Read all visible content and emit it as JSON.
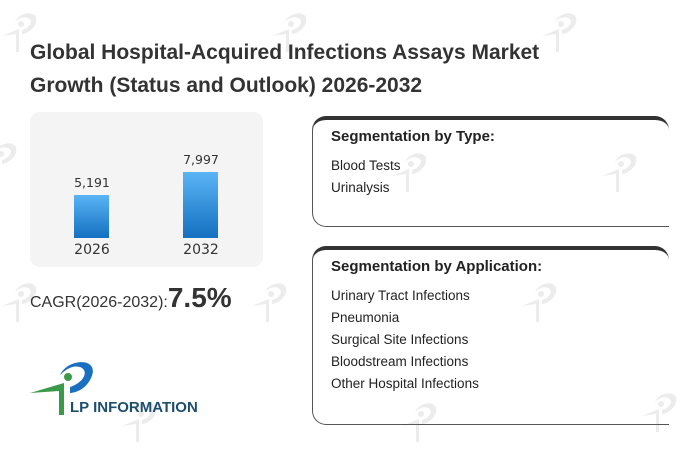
{
  "title": "Global Hospital-Acquired Infections Assays Market Growth (Status and Outlook) 2026-2032",
  "chart_data": {
    "type": "bar",
    "categories": [
      "2026",
      "2032"
    ],
    "values": [
      5191,
      7997
    ],
    "value_labels": [
      "5,191",
      "7,997"
    ],
    "ylim": [
      0,
      9500
    ],
    "grid": false
  },
  "cagr": {
    "label": "CAGR(2026-2032):",
    "value": "7.5%"
  },
  "type_card": {
    "title": "Segmentation by Type:",
    "items": [
      "Blood Tests",
      "Urinalysis"
    ]
  },
  "app_card": {
    "title": "Segmentation by Application:",
    "items": [
      "Urinary Tract Infections",
      "Pneumonia",
      "Surgical Site Infections",
      "Bloodstream Infections",
      "Other Hospital Infections"
    ]
  },
  "logo": {
    "text": "LP INFORMATION"
  },
  "watermark": "LP INFORMATION",
  "colors": {
    "bar_top": "#5ab4f5",
    "bar_bottom": "#1470c0",
    "logo_blue": "#1a6fc0",
    "logo_green": "#3a9a4a"
  }
}
